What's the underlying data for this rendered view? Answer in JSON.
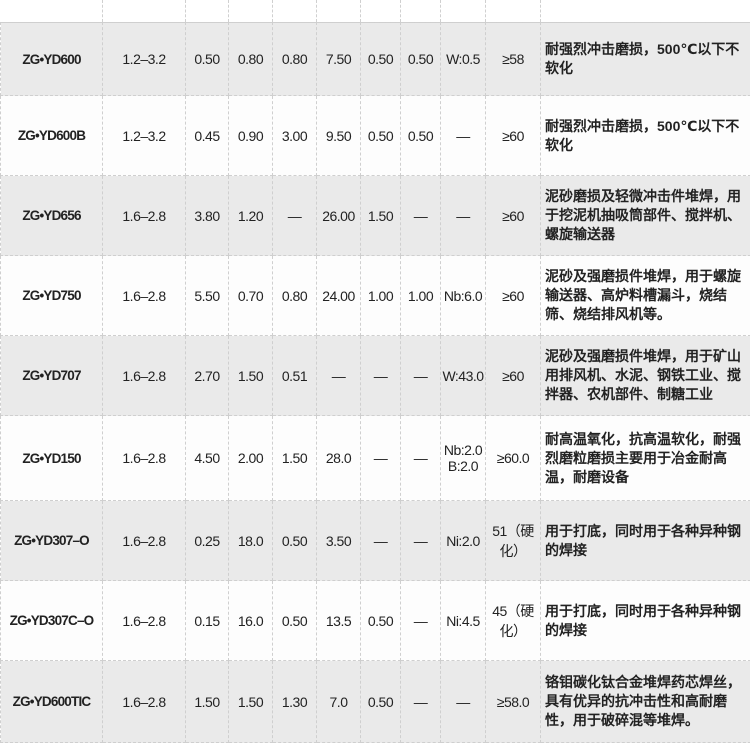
{
  "rows": [
    {
      "name": "ZG•YD600",
      "dia": "1.2–3.2",
      "c": [
        "0.50",
        "0.80",
        "0.80",
        "7.50",
        "0.50",
        "0.50"
      ],
      "other": "W:0.5",
      "hard": "≥58",
      "desc": "耐强烈冲击磨损，500℃以下不软化"
    },
    {
      "name": "ZG•YD600B",
      "dia": "1.2–3.2",
      "c": [
        "0.45",
        "0.90",
        "3.00",
        "9.50",
        "0.50",
        "0.50"
      ],
      "other": "—",
      "hard": "≥60",
      "desc": "耐强烈冲击磨损，500℃以下不软化"
    },
    {
      "name": "ZG•YD656",
      "dia": "1.6–2.8",
      "c": [
        "3.80",
        "1.20",
        "—",
        "26.00",
        "1.50",
        "—"
      ],
      "other": "—",
      "hard": "≥60",
      "desc": "泥砂磨损及轻微冲击件堆焊，用于挖泥机抽吸筒部件、搅拌机、螺旋输送器"
    },
    {
      "name": "ZG•YD750",
      "dia": "1.6–2.8",
      "c": [
        "5.50",
        "0.70",
        "0.80",
        "24.00",
        "1.00",
        "1.00"
      ],
      "other": "Nb:6.0",
      "hard": "≥60",
      "desc": "泥砂及强磨损件堆焊，用于螺旋输送器、高炉料槽漏斗，烧结筛、烧结排风机等。"
    },
    {
      "name": "ZG•YD707",
      "dia": "1.6–2.8",
      "c": [
        "2.70",
        "1.50",
        "0.51",
        "—",
        "—",
        "—"
      ],
      "other": "W:43.0",
      "hard": "≥60",
      "desc": "泥砂及强磨损件堆焊，用于矿山用排风机、水泥、钢铁工业、搅拌器、农机部件、制糖工业"
    },
    {
      "name": "ZG•YD150",
      "dia": "1.6–2.8",
      "c": [
        "4.50",
        "2.00",
        "1.50",
        "28.0",
        "—",
        "—"
      ],
      "other": "Nb:2.0 B:2.0",
      "hard": "≥60.0",
      "desc": "耐高温氧化，抗高温软化，耐强烈磨粒磨损主要用于冶金耐高温，耐磨设备"
    },
    {
      "name": "ZG•YD307–O",
      "dia": "1.6–2.8",
      "c": [
        "0.25",
        "18.0",
        "0.50",
        "3.50",
        "—",
        "—"
      ],
      "other": "Ni:2.0",
      "hard": "51（硬化）",
      "desc": "用于打底，同时用于各种异种钢的焊接"
    },
    {
      "name": "ZG•YD307C–O",
      "dia": "1.6–2.8",
      "c": [
        "0.15",
        "16.0",
        "0.50",
        "13.5",
        "0.50",
        "—"
      ],
      "other": "Ni:4.5",
      "hard": "45（硬化）",
      "desc": "用于打底，同时用于各种异种钢的焊接"
    },
    {
      "name": "ZG•YD600TIC",
      "dia": "1.6–2.8",
      "c": [
        "1.50",
        "1.50",
        "1.30",
        "7.0",
        "0.50",
        "—"
      ],
      "other": "—",
      "hard": "≥58.0",
      "desc": "铬钼碳化钛合金堆焊药芯焊丝，具有优异的抗冲击性和高耐磨性，用于破碎混等堆焊。"
    }
  ],
  "colors": {
    "shaded_row": "#eaeaea",
    "plain_row": "#fdfdfd",
    "text": "#222222"
  }
}
